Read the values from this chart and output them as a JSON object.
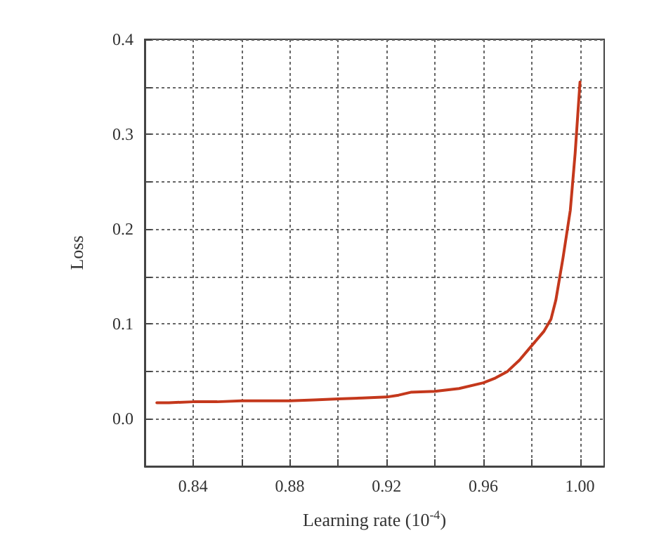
{
  "chart_data": {
    "type": "line",
    "xlabel": "Learning rate (10$^{-4}$)",
    "ylabel": "Loss",
    "series": [
      {
        "color": "#c4381c",
        "x": [
          0.825,
          0.83,
          0.84,
          0.85,
          0.86,
          0.87,
          0.88,
          0.89,
          0.9,
          0.91,
          0.92,
          0.925,
          0.93,
          0.94,
          0.95,
          0.96,
          0.965,
          0.97,
          0.975,
          0.98,
          0.985,
          0.988,
          0.99,
          0.993,
          0.996,
          0.998,
          1.0
        ],
        "values": [
          0.017,
          0.017,
          0.018,
          0.018,
          0.019,
          0.019,
          0.019,
          0.02,
          0.021,
          0.022,
          0.023,
          0.025,
          0.028,
          0.029,
          0.032,
          0.038,
          0.043,
          0.05,
          0.062,
          0.077,
          0.092,
          0.105,
          0.125,
          0.17,
          0.22,
          0.28,
          0.355
        ]
      }
    ],
    "xlim": [
      0.82,
      1.01
    ],
    "xticks": [
      {
        "value": 0.82,
        "label": null
      },
      0.84,
      {
        "value": 0.86,
        "label": null
      },
      0.88,
      {
        "value": 0.9,
        "label": null
      },
      0.92,
      {
        "value": 0.94,
        "label": null
      },
      0.96,
      {
        "value": 0.98,
        "label": null
      },
      {
        "value": 1.0,
        "label": "1.00"
      }
    ],
    "ylim": [
      -0.05,
      0.4
    ],
    "yticks": [
      {
        "value": 0,
        "label": "0.0"
      },
      {
        "value": 0.05,
        "label": null
      },
      {
        "value": 0.1,
        "label": "0.1"
      },
      {
        "value": 0.15,
        "label": null
      },
      {
        "value": 0.2,
        "label": "0.2"
      },
      {
        "value": 0.25,
        "label": null
      },
      {
        "value": 0.3,
        "label": "0.3"
      },
      {
        "value": 0.35,
        "label": null
      },
      {
        "value": 0.4,
        "label": "0.4"
      }
    ],
    "grid": true,
    "marker": "none",
    "line_style": "solid"
  }
}
